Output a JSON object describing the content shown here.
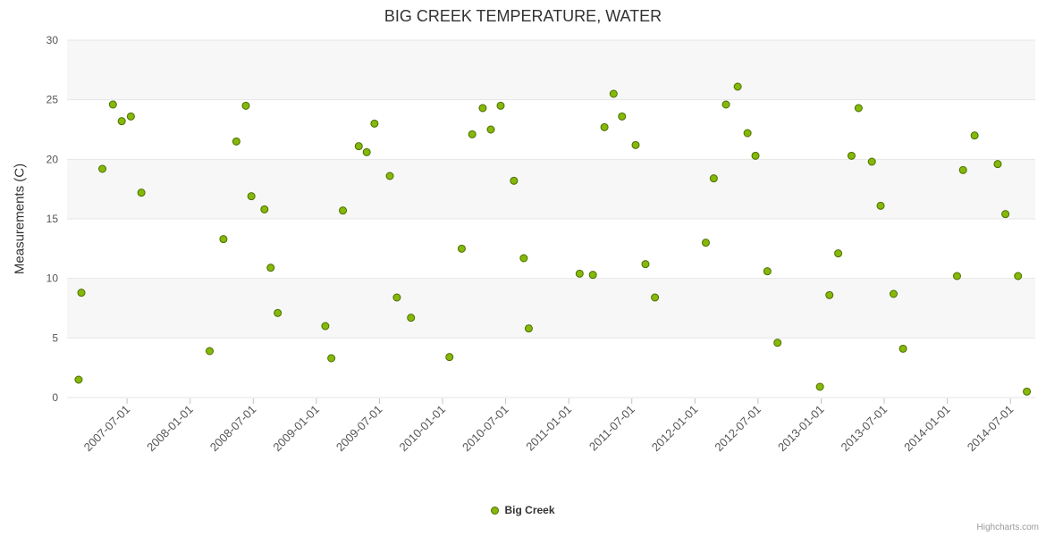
{
  "credits": "Highcharts.com",
  "chart_data": {
    "type": "scatter",
    "title": "BIG CREEK TEMPERATURE, WATER",
    "xlabel": "",
    "ylabel": "Measurements (C)",
    "ylim": [
      0,
      30
    ],
    "y_ticks": [
      0,
      5,
      10,
      15,
      20,
      25,
      30
    ],
    "x_range": [
      "2007-01-10",
      "2014-09-12"
    ],
    "x_ticks": [
      "2007-07-01",
      "2008-01-01",
      "2008-07-01",
      "2009-01-01",
      "2009-07-01",
      "2010-01-01",
      "2010-07-01",
      "2011-01-01",
      "2011-07-01",
      "2012-01-01",
      "2012-07-01",
      "2013-01-01",
      "2013-07-01",
      "2014-01-01",
      "2014-07-01"
    ],
    "grid": true,
    "grid_color": "#e6e6e6",
    "band_color": "#f7f7f7",
    "tick_color": "#c0c0c0",
    "axis_label_color": "#555555",
    "legend_label": "Big Creek",
    "legend_position": "bottom-center",
    "marker": {
      "fill": "#86b808",
      "stroke": "#4a6f00",
      "radius": 4
    },
    "points": [
      [
        "2007-02-13",
        1.5
      ],
      [
        "2007-02-21",
        8.8
      ],
      [
        "2007-04-21",
        19.2
      ],
      [
        "2007-05-21",
        24.6
      ],
      [
        "2007-06-16",
        23.2
      ],
      [
        "2007-07-12",
        23.6
      ],
      [
        "2007-08-12",
        17.2
      ],
      [
        "2008-02-27",
        3.9
      ],
      [
        "2008-04-06",
        13.3
      ],
      [
        "2008-05-13",
        21.5
      ],
      [
        "2008-06-10",
        24.5
      ],
      [
        "2008-06-26",
        16.9
      ],
      [
        "2008-08-03",
        15.8
      ],
      [
        "2008-08-21",
        10.9
      ],
      [
        "2008-09-11",
        7.1
      ],
      [
        "2009-01-27",
        6.0
      ],
      [
        "2009-02-14",
        3.3
      ],
      [
        "2009-03-17",
        15.7
      ],
      [
        "2009-05-02",
        21.1
      ],
      [
        "2009-05-25",
        20.6
      ],
      [
        "2009-06-17",
        23.0
      ],
      [
        "2009-07-31",
        18.6
      ],
      [
        "2009-08-21",
        8.4
      ],
      [
        "2009-10-01",
        6.7
      ],
      [
        "2010-01-21",
        3.4
      ],
      [
        "2010-02-26",
        12.5
      ],
      [
        "2010-03-26",
        22.1
      ],
      [
        "2010-04-26",
        24.3
      ],
      [
        "2010-05-19",
        22.5
      ],
      [
        "2010-06-17",
        24.5
      ],
      [
        "2010-07-25",
        18.2
      ],
      [
        "2010-08-23",
        11.7
      ],
      [
        "2010-09-07",
        5.8
      ],
      [
        "2011-02-02",
        10.4
      ],
      [
        "2011-03-10",
        10.3
      ],
      [
        "2011-04-13",
        22.7
      ],
      [
        "2011-05-09",
        25.5
      ],
      [
        "2011-06-03",
        23.6
      ],
      [
        "2011-07-12",
        21.2
      ],
      [
        "2011-08-10",
        11.2
      ],
      [
        "2011-09-07",
        8.4
      ],
      [
        "2012-02-02",
        13.0
      ],
      [
        "2012-02-25",
        18.4
      ],
      [
        "2012-03-30",
        24.6
      ],
      [
        "2012-05-03",
        26.1
      ],
      [
        "2012-06-01",
        22.2
      ],
      [
        "2012-06-24",
        20.3
      ],
      [
        "2012-07-28",
        10.6
      ],
      [
        "2012-08-27",
        4.6
      ],
      [
        "2012-12-28",
        0.9
      ],
      [
        "2013-01-25",
        8.6
      ],
      [
        "2013-02-20",
        12.1
      ],
      [
        "2013-03-28",
        20.3
      ],
      [
        "2013-04-18",
        24.3
      ],
      [
        "2013-05-26",
        19.8
      ],
      [
        "2013-06-21",
        16.1
      ],
      [
        "2013-07-28",
        8.7
      ],
      [
        "2013-08-25",
        4.1
      ],
      [
        "2014-01-29",
        10.2
      ],
      [
        "2014-02-16",
        19.1
      ],
      [
        "2014-03-19",
        22.0
      ],
      [
        "2014-05-25",
        19.6
      ],
      [
        "2014-06-17",
        15.4
      ],
      [
        "2014-07-23",
        10.2
      ],
      [
        "2014-08-18",
        0.5
      ]
    ]
  }
}
